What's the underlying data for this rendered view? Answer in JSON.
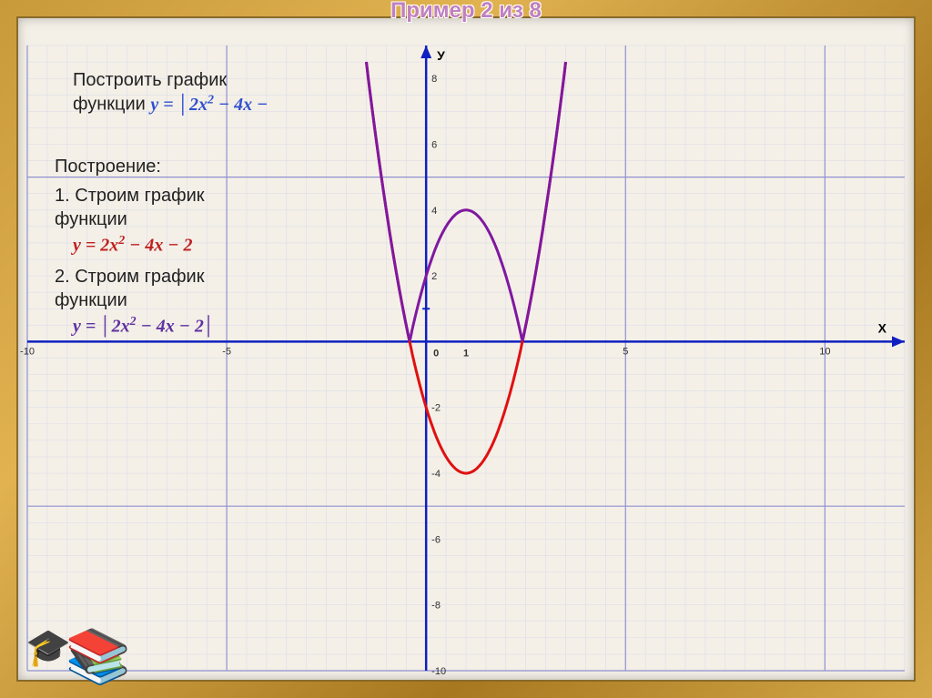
{
  "header": {
    "title": "Пример 2 из 8"
  },
  "task": {
    "line1": "Построить график",
    "line2_prefix": "функции ",
    "line2_formula": "y = │2x² − 4x −"
  },
  "construction": {
    "heading": "Построение:",
    "step1_text": "1. Cтроим график функции",
    "step1_formula": "y = 2x² − 4x − 2",
    "step2_text": "2. Строим график функции",
    "step2_formula": "y = │2x² − 4x − 2│"
  },
  "chart": {
    "type": "function-plot",
    "x_axis_label": "X",
    "y_axis_label": "У",
    "origin_label": "0",
    "unit_label": "1",
    "x_range": [
      -10,
      12
    ],
    "y_range": [
      -10,
      9
    ],
    "x_ticks": [
      -10,
      -5,
      5,
      10
    ],
    "y_ticks": [
      -10,
      -8,
      -6,
      -4,
      -2,
      2,
      4,
      6,
      8
    ],
    "grid_minor_step": 0.5,
    "grid_major_step": 5,
    "colors": {
      "grid_minor": "#d8d8e8",
      "grid_major": "#9090d0",
      "axis": "#1020c0",
      "curve_original": "#e01010",
      "curve_absolute": "#8018a0",
      "background": "#f4f0e8"
    },
    "line_widths": {
      "grid_minor": 0.5,
      "grid_major": 1.2,
      "axis": 2.5,
      "curve": 3
    },
    "function_original": {
      "expr": "2x^2 - 4x - 2",
      "xmin": -1.5,
      "xmax": 3.5
    },
    "function_absolute": {
      "expr": "|2x^2 - 4x - 2|",
      "xmin": -1.5,
      "xmax": 3.5
    }
  },
  "decorations": {
    "books_icon": "📚",
    "cap_icon": "🎓"
  }
}
